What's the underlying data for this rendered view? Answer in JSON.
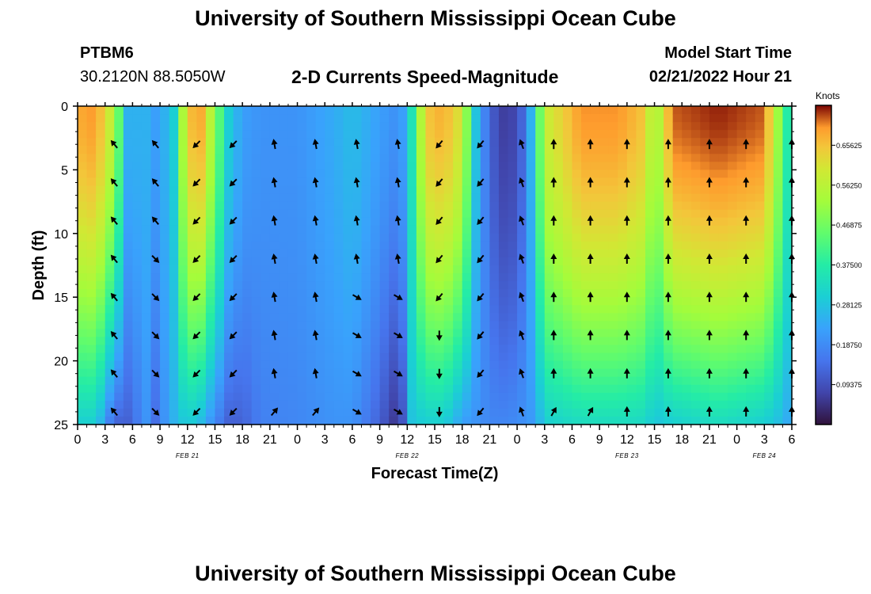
{
  "header": {
    "title": "University of Southern Mississippi Ocean Cube",
    "station": "PTBM6",
    "coords": "30.2120N  88.5050W",
    "subtitle": "2-D Currents Speed-Magnitude",
    "model_label": "Model Start Time",
    "model_time": "02/21/2022 Hour 21"
  },
  "footer": {
    "title": "University of Southern Mississippi Ocean Cube"
  },
  "chart_data": {
    "type": "heatmap",
    "title": "2-D Currents Speed-Magnitude",
    "xlabel": "Forecast Time(Z)",
    "ylabel": "Depth (ft)",
    "x_tick_labels": [
      "0",
      "3",
      "6",
      "9",
      "12",
      "15",
      "18",
      "21",
      "0",
      "3",
      "6",
      "9",
      "12",
      "15",
      "18",
      "21",
      "0",
      "3",
      "6",
      "9",
      "12",
      "15",
      "18",
      "21",
      "0",
      "3",
      "6"
    ],
    "x_hour_range": [
      0,
      78
    ],
    "date_labels": [
      {
        "label": "FEB 21",
        "hour": 12
      },
      {
        "label": "FEB 22",
        "hour": 36
      },
      {
        "label": "FEB 23",
        "hour": 60
      },
      {
        "label": "FEB 24",
        "hour": 75
      }
    ],
    "y_ticks": [
      0,
      5,
      10,
      15,
      20,
      25
    ],
    "ylim": [
      0,
      25
    ],
    "colorbar": {
      "title": "Knots",
      "range": [
        0.0,
        0.75
      ],
      "tick_labels": [
        "0.65625",
        "0.56250",
        "0.46875",
        "0.37500",
        "0.28125",
        "0.18750",
        "0.09375"
      ],
      "tick_values": [
        0.65625,
        0.5625,
        0.46875,
        0.375,
        0.28125,
        0.1875,
        0.09375
      ]
    },
    "arrow_depths": [
      3,
      6,
      9,
      12,
      15,
      18,
      21,
      24
    ],
    "arrow_hours": [
      4,
      8.5,
      13,
      17,
      21.5,
      26,
      30.5,
      35,
      39.5,
      44,
      48.5,
      52,
      56,
      60,
      64.5,
      69,
      73,
      78
    ],
    "speed_profiles": [
      {
        "hour": 0,
        "top": 0.68,
        "bottom": 0.3
      },
      {
        "hour": 2,
        "top": 0.7,
        "bottom": 0.3
      },
      {
        "hour": 4,
        "top": 0.55,
        "bottom": 0.12
      },
      {
        "hour": 5.5,
        "top": 0.25,
        "bottom": 0.12
      },
      {
        "hour": 7.5,
        "top": 0.25,
        "bottom": 0.2
      },
      {
        "hour": 8.5,
        "top": 0.22,
        "bottom": 0.14
      },
      {
        "hour": 9.5,
        "top": 0.25,
        "bottom": 0.2
      },
      {
        "hour": 10.5,
        "top": 0.3,
        "bottom": 0.25
      },
      {
        "hour": 12,
        "top": 0.66,
        "bottom": 0.3
      },
      {
        "hour": 13.5,
        "top": 0.68,
        "bottom": 0.26
      },
      {
        "hour": 15,
        "top": 0.5,
        "bottom": 0.18
      },
      {
        "hour": 16.5,
        "top": 0.3,
        "bottom": 0.12
      },
      {
        "hour": 18,
        "top": 0.22,
        "bottom": 0.12
      },
      {
        "hour": 20,
        "top": 0.2,
        "bottom": 0.17
      },
      {
        "hour": 24,
        "top": 0.2,
        "bottom": 0.18
      },
      {
        "hour": 28,
        "top": 0.24,
        "bottom": 0.2
      },
      {
        "hour": 30,
        "top": 0.27,
        "bottom": 0.2
      },
      {
        "hour": 33,
        "top": 0.22,
        "bottom": 0.12
      },
      {
        "hour": 34.5,
        "top": 0.2,
        "bottom": 0.06
      },
      {
        "hour": 35.5,
        "top": 0.22,
        "bottom": 0.1
      },
      {
        "hour": 36.5,
        "top": 0.35,
        "bottom": 0.28
      },
      {
        "hour": 38,
        "top": 0.65,
        "bottom": 0.3
      },
      {
        "hour": 40,
        "top": 0.68,
        "bottom": 0.3
      },
      {
        "hour": 42,
        "top": 0.6,
        "bottom": 0.22
      },
      {
        "hour": 43.5,
        "top": 0.28,
        "bottom": 0.2
      },
      {
        "hour": 45,
        "top": 0.12,
        "bottom": 0.18
      },
      {
        "hour": 47,
        "top": 0.05,
        "bottom": 0.18
      },
      {
        "hour": 49,
        "top": 0.15,
        "bottom": 0.2
      },
      {
        "hour": 50,
        "top": 0.35,
        "bottom": 0.22
      },
      {
        "hour": 51,
        "top": 0.58,
        "bottom": 0.3
      },
      {
        "hour": 55,
        "top": 0.7,
        "bottom": 0.33
      },
      {
        "hour": 59,
        "top": 0.7,
        "bottom": 0.33
      },
      {
        "hour": 62,
        "top": 0.65,
        "bottom": 0.32
      },
      {
        "hour": 63,
        "top": 0.5,
        "bottom": 0.28
      },
      {
        "hour": 65,
        "top": 0.72,
        "bottom": 0.3
      },
      {
        "hour": 70,
        "top": 0.74,
        "bottom": 0.33
      },
      {
        "hour": 75,
        "top": 0.72,
        "bottom": 0.3
      },
      {
        "hour": 77,
        "top": 0.45,
        "bottom": 0.26
      },
      {
        "hour": 78,
        "top": 0.3,
        "bottom": 0.22
      }
    ],
    "arrow_regimes": [
      {
        "from": 0,
        "to": 11,
        "angle_deg": 320,
        "note": "NW upper, SE lower around hour 8"
      },
      {
        "from": 11,
        "to": 18,
        "angle_deg": 225
      },
      {
        "from": 18,
        "to": 36,
        "angle_deg": 350
      },
      {
        "from": 36,
        "to": 44,
        "angle_deg": 220
      },
      {
        "from": 44,
        "to": 51,
        "angle_deg": 340
      },
      {
        "from": 51,
        "to": 78,
        "angle_deg": 0
      }
    ]
  }
}
